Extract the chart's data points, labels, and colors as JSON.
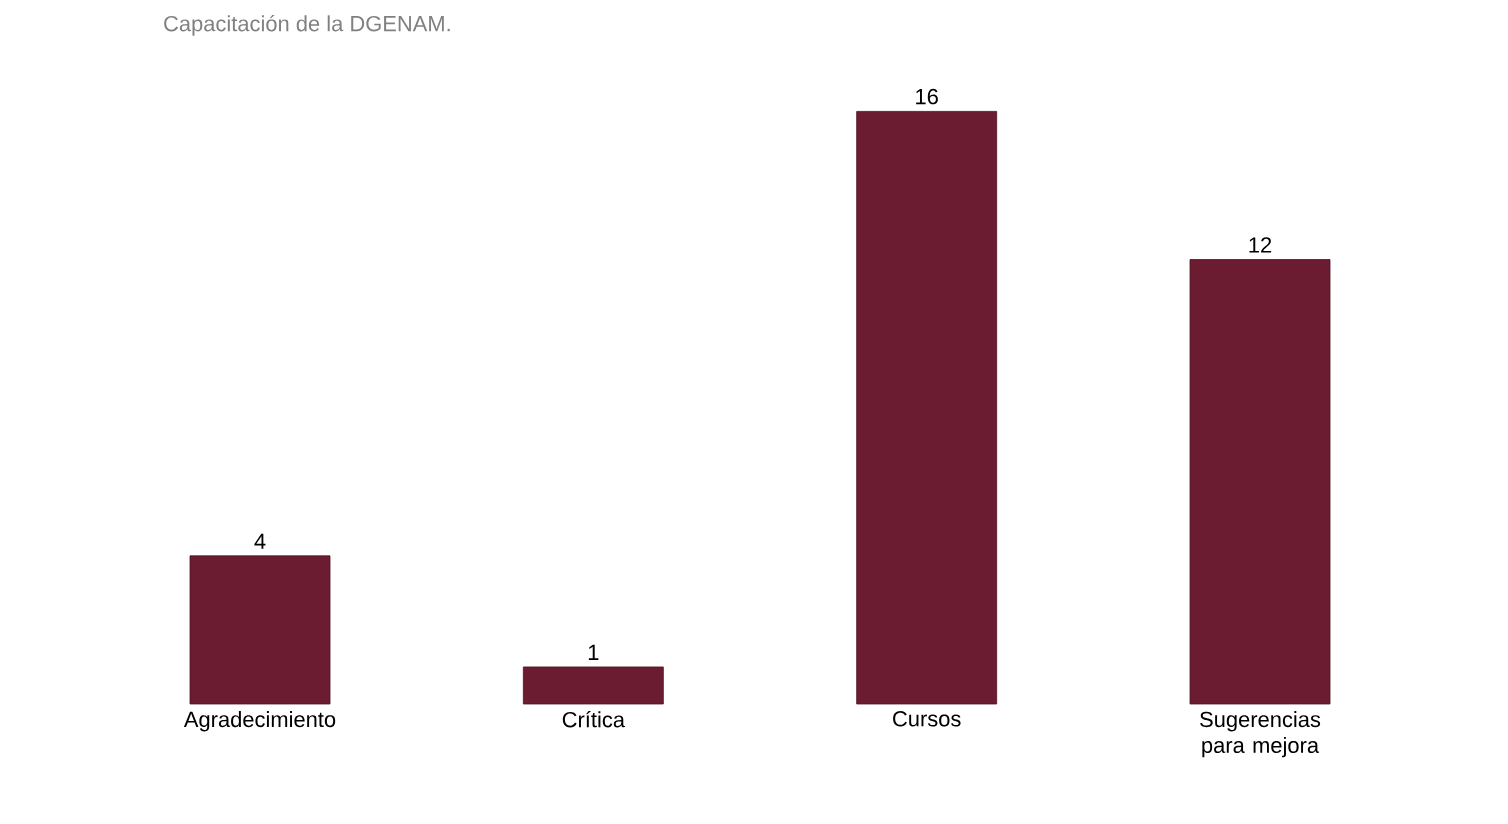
{
  "chart_data": {
    "type": "bar",
    "title": "Capacitación de la DGENAM.",
    "categories": [
      "Agradecimiento",
      "Crítica",
      "Cursos",
      "Sugerencias para mejora"
    ],
    "values": [
      4,
      1,
      16,
      12
    ],
    "color": "#6b1c31",
    "data_labels": true
  }
}
